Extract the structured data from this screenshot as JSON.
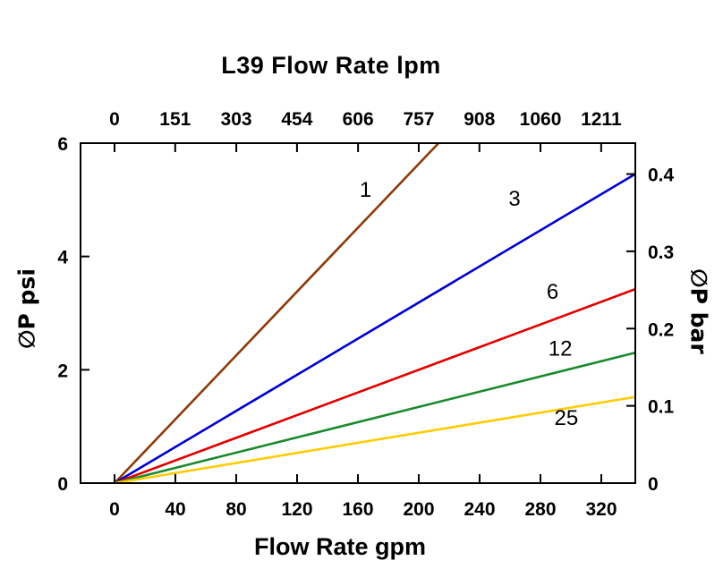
{
  "chart_data": {
    "type": "line",
    "title": "L39 Flow Rate lpm",
    "top_axis": {
      "title": "L39 Flow Rate lpm",
      "unit": "lpm",
      "ticks": [
        0,
        151,
        303,
        454,
        606,
        757,
        908,
        1060,
        1211
      ]
    },
    "bottom_axis": {
      "title": "Flow Rate gpm",
      "unit": "gpm",
      "ticks": [
        0,
        40,
        80,
        120,
        160,
        200,
        240,
        280,
        320
      ],
      "range": [
        -22,
        342
      ]
    },
    "left_axis": {
      "title": "∅P psi",
      "unit": "psi",
      "ticks": [
        0,
        2,
        4,
        6
      ],
      "range": [
        0,
        6
      ]
    },
    "right_axis": {
      "title": "∅P bar",
      "unit": "bar",
      "ticks": [
        0,
        0.1,
        0.2,
        0.3,
        0.4
      ],
      "range": [
        0,
        0.44
      ]
    },
    "lpm_per_gpm": 3.78541,
    "grid": false,
    "legend": "inline-labels",
    "series": [
      {
        "label": "1",
        "color": "#8C3A0A",
        "points": [
          [
            0,
            0
          ],
          [
            213,
            6.0
          ]
        ],
        "label_pos": [
          165,
          5.18
        ]
      },
      {
        "label": "3",
        "color": "#0000CC",
        "points": [
          [
            0,
            0
          ],
          [
            342,
            5.45
          ]
        ],
        "label_pos": [
          263,
          5.02
        ]
      },
      {
        "label": "6",
        "color": "#E00000",
        "points": [
          [
            0,
            0
          ],
          [
            342,
            3.42
          ]
        ],
        "label_pos": [
          288,
          3.38
        ]
      },
      {
        "label": "12",
        "color": "#1B8A2F",
        "points": [
          [
            0,
            0
          ],
          [
            342,
            2.3
          ]
        ],
        "label_pos": [
          293,
          2.38
        ]
      },
      {
        "label": "25",
        "color": "#FFCC00",
        "points": [
          [
            0,
            0
          ],
          [
            342,
            1.52
          ]
        ],
        "label_pos": [
          297,
          1.15
        ]
      }
    ]
  }
}
